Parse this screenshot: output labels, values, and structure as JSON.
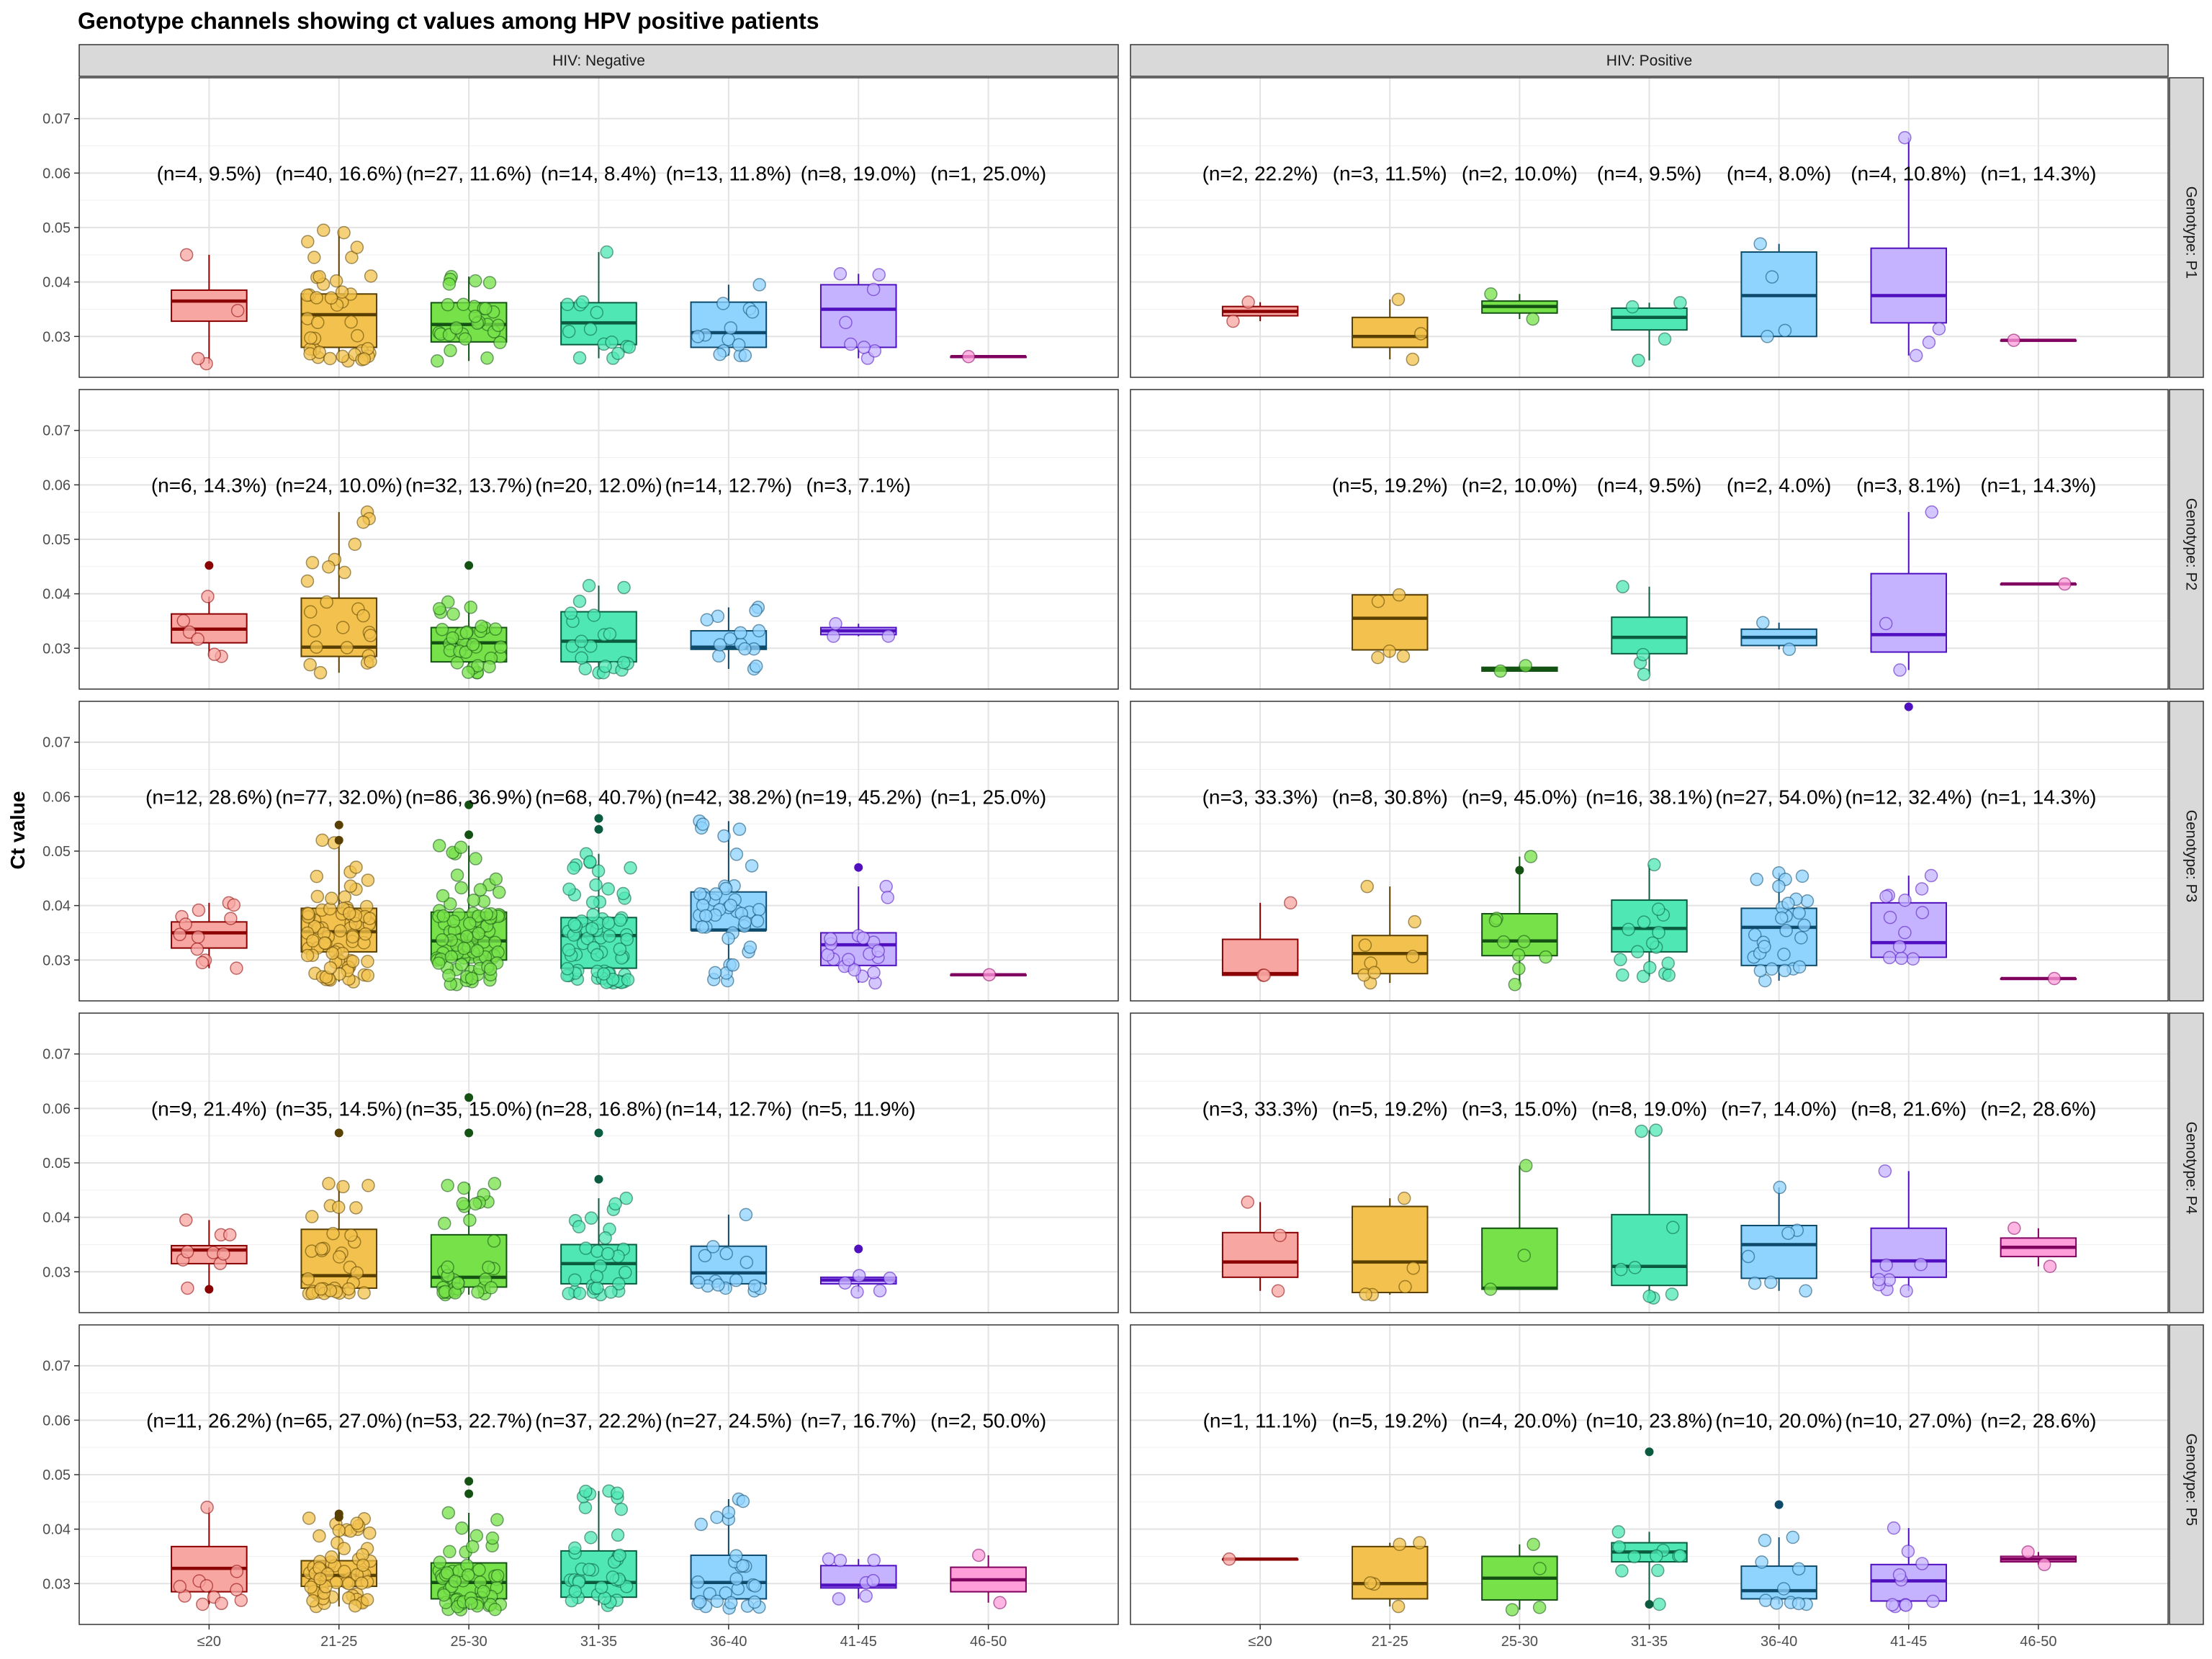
{
  "chart_data": {
    "type": "box",
    "title": "Genotype channels showing ct values among HPV positive patients",
    "ylabel": "Ct value",
    "xlabel": "",
    "categories": [
      "≤20",
      "21-25",
      "25-30",
      "31-35",
      "36-40",
      "41-45",
      "46-50"
    ],
    "ylim": [
      0.0225,
      0.0775
    ],
    "yticks": [
      0.03,
      0.04,
      0.05,
      0.06,
      0.07
    ],
    "ytick_labels": [
      "0.03",
      "0.04",
      "0.05",
      "0.06",
      "0.07"
    ],
    "grid": true,
    "legend": "none",
    "facet_columns": [
      "HIV: Negative",
      "HIV: Positive"
    ],
    "facet_rows": [
      "Genotype: P1",
      "Genotype: P2",
      "Genotype: P3",
      "Genotype: P4",
      "Genotype: P5"
    ],
    "annotation_y": 0.06,
    "colors": {
      "fill": [
        "#F8A6A2",
        "#F2C14E",
        "#77E14A",
        "#4FE8B5",
        "#8FD3FF",
        "#C5B3FF",
        "#FF9ED9"
      ],
      "line": [
        "#8B0000",
        "#5A4000",
        "#145214",
        "#0B5C3E",
        "#0D4A6B",
        "#5010C0",
        "#800060"
      ]
    },
    "panels": [
      {
        "row": 0,
        "col": 0,
        "labels": [
          "(n=4, 9.5%)",
          "(n=40, 16.6%)",
          "(n=27, 11.6%)",
          "(n=14, 8.4%)",
          "(n=13, 11.8%)",
          "(n=8, 19.0%)",
          "(n=1, 25.0%)"
        ],
        "boxes": [
          [
            0.025,
            0.0328,
            0.0365,
            0.0385,
            0.045
          ],
          [
            0.0255,
            0.028,
            0.034,
            0.0378,
            0.0495
          ],
          [
            0.0255,
            0.029,
            0.0322,
            0.0362,
            0.041
          ],
          [
            0.026,
            0.0285,
            0.0325,
            0.0362,
            0.0455
          ],
          [
            0.0265,
            0.028,
            0.0307,
            0.0363,
            0.0395
          ],
          [
            0.026,
            0.028,
            0.035,
            0.0395,
            0.0415
          ],
          [
            0.0263,
            0.0263,
            0.0263,
            0.0263,
            0.0263
          ]
        ],
        "outliers": [
          [],
          [],
          [],
          [],
          [],
          [],
          []
        ]
      },
      {
        "row": 0,
        "col": 1,
        "labels": [
          "(n=2, 22.2%)",
          "(n=3, 11.5%)",
          "(n=2, 10.0%)",
          "(n=4, 9.5%)",
          "(n=4, 8.0%)",
          "(n=4, 10.8%)",
          "(n=1, 14.3%)"
        ],
        "boxes": [
          [
            0.0328,
            0.0338,
            0.0346,
            0.0355,
            0.0363
          ],
          [
            0.0258,
            0.028,
            0.03,
            0.0335,
            0.0368
          ],
          [
            0.0332,
            0.0343,
            0.0355,
            0.0365,
            0.0378
          ],
          [
            0.0256,
            0.0312,
            0.0335,
            0.0352,
            0.0362
          ],
          [
            0.03,
            0.03,
            0.0375,
            0.0455,
            0.047
          ],
          [
            0.0265,
            0.0325,
            0.0375,
            0.0462,
            0.0665
          ],
          [
            0.0293,
            0.0293,
            0.0293,
            0.0293,
            0.0293
          ]
        ],
        "outliers": [
          [],
          [],
          [],
          [],
          [],
          [],
          []
        ]
      },
      {
        "row": 1,
        "col": 0,
        "labels": [
          "(n=6, 14.3%)",
          "(n=24, 10.0%)",
          "(n=32, 13.7%)",
          "(n=20, 12.0%)",
          "(n=14, 12.7%)",
          "(n=3, 7.1%)",
          ""
        ],
        "boxes": [
          [
            0.0285,
            0.031,
            0.0335,
            0.0363,
            0.0395
          ],
          [
            0.0255,
            0.0285,
            0.0302,
            0.0392,
            0.055
          ],
          [
            0.0255,
            0.0275,
            0.031,
            0.0338,
            0.0385
          ],
          [
            0.0255,
            0.0275,
            0.0313,
            0.0367,
            0.0415
          ],
          [
            0.0262,
            0.0298,
            0.0302,
            0.0332,
            0.0375
          ],
          [
            0.0322,
            0.0325,
            0.0332,
            0.0338,
            0.0345
          ],
          null
        ],
        "outliers": [
          [
            0.0452
          ],
          [],
          [
            0.0452
          ],
          [],
          [],
          [],
          []
        ]
      },
      {
        "row": 1,
        "col": 1,
        "labels": [
          "",
          "(n=5, 19.2%)",
          "(n=2, 10.0%)",
          "(n=4, 9.5%)",
          "(n=2, 4.0%)",
          "(n=3, 8.1%)",
          "(n=1, 14.3%)"
        ],
        "boxes": [
          null,
          [
            0.0283,
            0.0297,
            0.0355,
            0.0398,
            0.0398
          ],
          [
            0.0258,
            0.0258,
            0.0262,
            0.0265,
            0.0268
          ],
          [
            0.0252,
            0.029,
            0.032,
            0.0357,
            0.0413
          ],
          [
            0.0298,
            0.0305,
            0.032,
            0.0335,
            0.0347
          ],
          [
            0.026,
            0.0293,
            0.0325,
            0.0437,
            0.055
          ],
          [
            0.0418,
            0.0418,
            0.0418,
            0.0418,
            0.0418
          ]
        ],
        "outliers": [
          [],
          [],
          [],
          [],
          [],
          [],
          []
        ]
      },
      {
        "row": 2,
        "col": 0,
        "labels": [
          "(n=12, 28.6%)",
          "(n=77, 32.0%)",
          "(n=86, 36.9%)",
          "(n=68, 40.7%)",
          "(n=42, 38.2%)",
          "(n=19, 45.2%)",
          "(n=1, 25.0%)"
        ],
        "boxes": [
          [
            0.0285,
            0.0322,
            0.035,
            0.037,
            0.0405
          ],
          [
            0.026,
            0.0315,
            0.0352,
            0.0395,
            0.052
          ],
          [
            0.0255,
            0.03,
            0.0335,
            0.0388,
            0.051
          ],
          [
            0.0258,
            0.0285,
            0.0345,
            0.0378,
            0.0495
          ],
          [
            0.0262,
            0.0355,
            0.0355,
            0.0425,
            0.0555
          ],
          [
            0.0258,
            0.029,
            0.0328,
            0.035,
            0.0435
          ],
          [
            0.0273,
            0.0273,
            0.0273,
            0.0273,
            0.0273
          ]
        ],
        "outliers": [
          [],
          [
            0.0548,
            0.052
          ],
          [
            0.0585,
            0.053
          ],
          [
            0.056,
            0.054
          ],
          [],
          [
            0.047
          ],
          []
        ]
      },
      {
        "row": 2,
        "col": 1,
        "labels": [
          "(n=3, 33.3%)",
          "(n=8, 30.8%)",
          "(n=9, 45.0%)",
          "(n=16, 38.1%)",
          "(n=27, 54.0%)",
          "(n=12, 32.4%)",
          "(n=1, 14.3%)"
        ],
        "boxes": [
          [
            0.0272,
            0.0272,
            0.0275,
            0.0338,
            0.0405
          ],
          [
            0.0258,
            0.0275,
            0.0312,
            0.0345,
            0.0435
          ],
          [
            0.0255,
            0.0308,
            0.0335,
            0.0385,
            0.049
          ],
          [
            0.027,
            0.0315,
            0.0358,
            0.041,
            0.0475
          ],
          [
            0.0262,
            0.029,
            0.036,
            0.0395,
            0.046
          ],
          [
            0.0302,
            0.0305,
            0.0332,
            0.0405,
            0.0455
          ],
          [
            0.0266,
            0.0266,
            0.0266,
            0.0266,
            0.0266
          ]
        ],
        "outliers": [
          [],
          [],
          [
            0.0465
          ],
          [],
          [],
          [
            0.0765
          ],
          []
        ]
      },
      {
        "row": 3,
        "col": 0,
        "labels": [
          "(n=9, 21.4%)",
          "(n=35, 14.5%)",
          "(n=35, 15.0%)",
          "(n=28, 16.8%)",
          "(n=14, 12.7%)",
          "(n=5, 11.9%)",
          ""
        ],
        "boxes": [
          [
            0.027,
            0.0315,
            0.034,
            0.0348,
            0.0395
          ],
          [
            0.026,
            0.027,
            0.0293,
            0.0378,
            0.0462
          ],
          [
            0.0258,
            0.0272,
            0.029,
            0.0368,
            0.0462
          ],
          [
            0.0258,
            0.0278,
            0.0315,
            0.035,
            0.0435
          ],
          [
            0.0265,
            0.0278,
            0.0298,
            0.0347,
            0.0405
          ],
          [
            0.0263,
            0.0278,
            0.0285,
            0.029,
            0.0293
          ],
          null
        ],
        "outliers": [
          [
            0.0268
          ],
          [
            0.0555
          ],
          [
            0.062,
            0.0555
          ],
          [
            0.0555,
            0.047
          ],
          [],
          [
            0.0342
          ],
          []
        ]
      },
      {
        "row": 3,
        "col": 1,
        "labels": [
          "(n=3, 33.3%)",
          "(n=5, 19.2%)",
          "(n=3, 15.0%)",
          "(n=8, 19.0%)",
          "(n=7, 14.0%)",
          "(n=8, 21.6%)",
          "(n=2, 28.6%)"
        ],
        "boxes": [
          [
            0.0265,
            0.029,
            0.0318,
            0.0372,
            0.0428
          ],
          [
            0.0258,
            0.0262,
            0.0318,
            0.042,
            0.0435
          ],
          [
            0.0268,
            0.0268,
            0.027,
            0.038,
            0.0495
          ],
          [
            0.0252,
            0.0275,
            0.031,
            0.0405,
            0.056
          ],
          [
            0.0265,
            0.0288,
            0.035,
            0.0385,
            0.0455
          ],
          [
            0.0265,
            0.029,
            0.032,
            0.038,
            0.0485
          ],
          [
            0.031,
            0.0328,
            0.0345,
            0.0362,
            0.038
          ]
        ],
        "outliers": [
          [],
          [],
          [],
          [],
          [],
          [],
          []
        ]
      },
      {
        "row": 4,
        "col": 0,
        "labels": [
          "(n=11, 26.2%)",
          "(n=65, 27.0%)",
          "(n=53, 22.7%)",
          "(n=37, 22.2%)",
          "(n=27, 24.5%)",
          "(n=7, 16.7%)",
          "(n=2, 50.0%)"
        ],
        "boxes": [
          [
            0.0262,
            0.0285,
            0.0328,
            0.0368,
            0.044
          ],
          [
            0.0258,
            0.0295,
            0.0315,
            0.0342,
            0.042
          ],
          [
            0.0252,
            0.0272,
            0.0302,
            0.0338,
            0.043
          ],
          [
            0.026,
            0.0275,
            0.0302,
            0.036,
            0.047
          ],
          [
            0.0255,
            0.0272,
            0.0302,
            0.0352,
            0.0455
          ],
          [
            0.0272,
            0.0292,
            0.0297,
            0.0333,
            0.0345
          ],
          [
            0.0265,
            0.0285,
            0.0307,
            0.033,
            0.0352
          ]
        ],
        "outliers": [
          [],
          [
            0.0428,
            0.0422
          ],
          [
            0.0488,
            0.0465
          ],
          [],
          [],
          [],
          []
        ]
      },
      {
        "row": 4,
        "col": 1,
        "labels": [
          "(n=1, 11.1%)",
          "(n=5, 19.2%)",
          "(n=4, 20.0%)",
          "(n=10, 23.8%)",
          "(n=10, 20.0%)",
          "(n=10, 27.0%)",
          "(n=2, 28.6%)"
        ],
        "boxes": [
          [
            0.0345,
            0.0345,
            0.0345,
            0.0345,
            0.0345
          ],
          [
            0.0258,
            0.0272,
            0.03,
            0.0368,
            0.0375
          ],
          [
            0.0252,
            0.027,
            0.031,
            0.035,
            0.0372
          ],
          [
            0.0262,
            0.034,
            0.0358,
            0.0375,
            0.0395
          ],
          [
            0.0262,
            0.0272,
            0.0287,
            0.0332,
            0.0385
          ],
          [
            0.0258,
            0.0268,
            0.0305,
            0.0335,
            0.0402
          ],
          [
            0.0335,
            0.034,
            0.0345,
            0.035,
            0.0358
          ]
        ],
        "outliers": [
          [],
          [],
          [],
          [
            0.0542,
            0.0262
          ],
          [
            0.0445
          ],
          [],
          []
        ]
      }
    ]
  }
}
